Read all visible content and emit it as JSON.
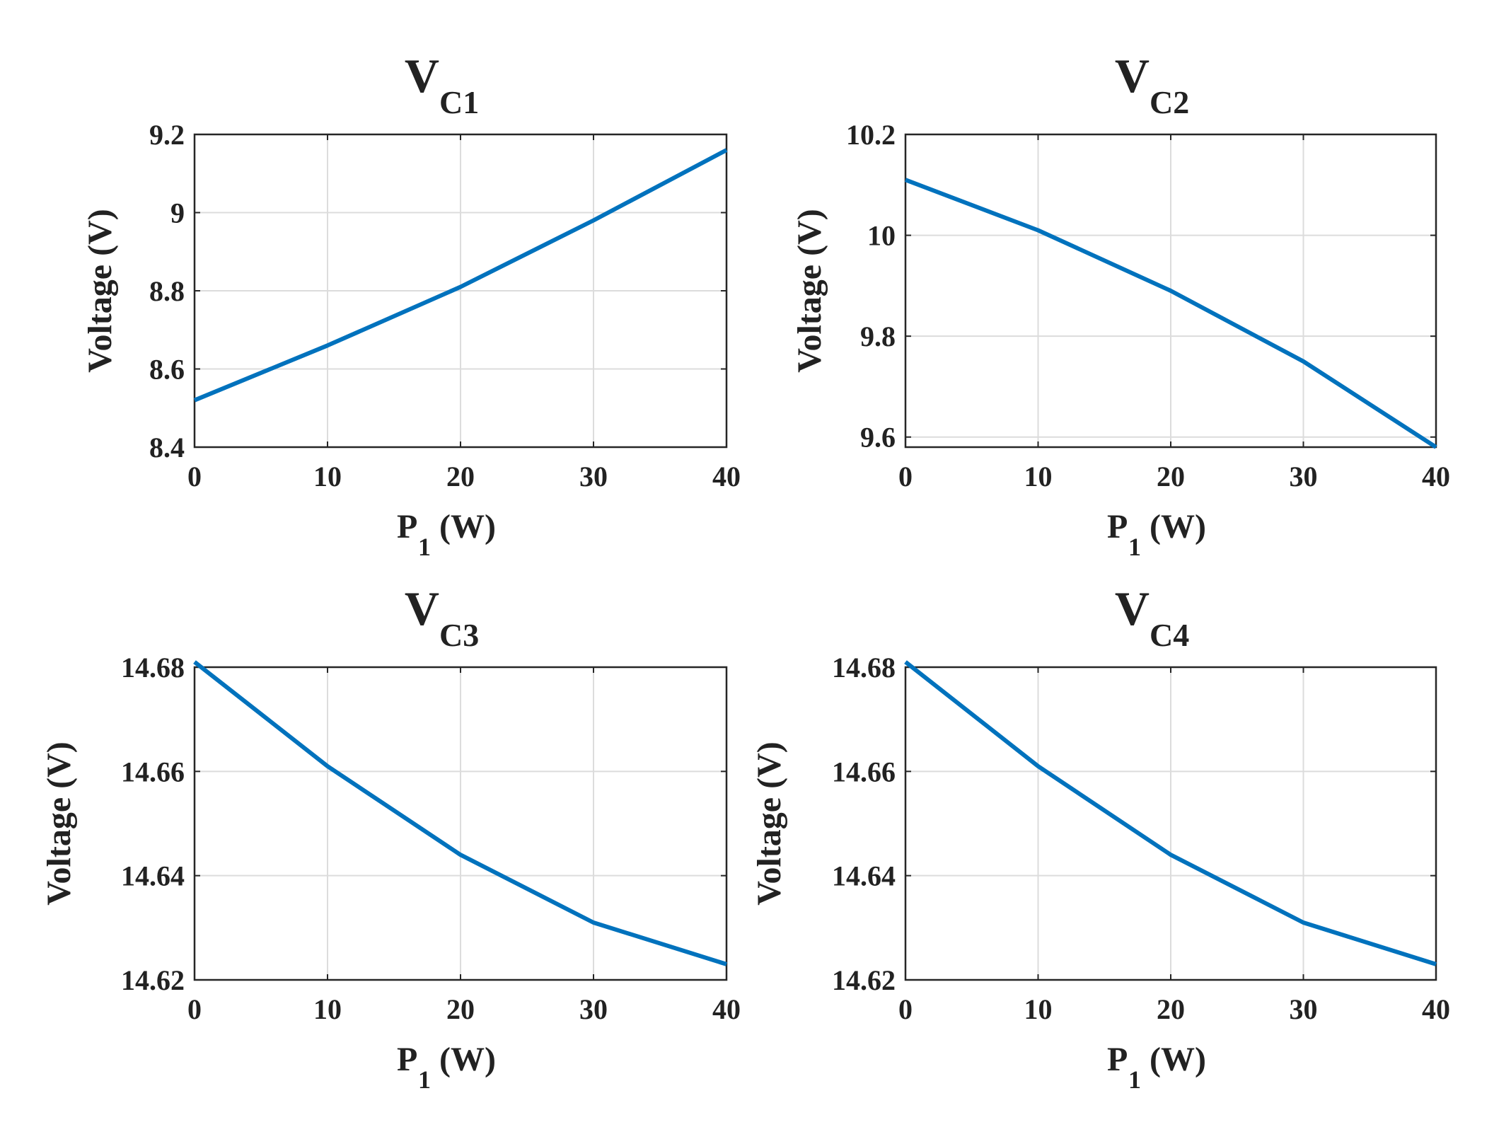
{
  "chart_data": [
    {
      "type": "line",
      "title_main": "V",
      "title_sub": "C1",
      "xlabel_main": "P",
      "xlabel_sub": "1",
      "xlabel_unit": "(W)",
      "ylabel": "Voltage (V)",
      "xlim": [
        0,
        40
      ],
      "ylim": [
        8.4,
        9.2
      ],
      "xticks": [
        "0",
        "10",
        "20",
        "30",
        "40"
      ],
      "yticks": [
        "8.4",
        "8.6",
        "8.8",
        "9",
        "9.2"
      ],
      "grid": true,
      "color": "#0072BD",
      "x": [
        0,
        10,
        20,
        30,
        40
      ],
      "y": [
        8.52,
        8.66,
        8.81,
        8.98,
        9.16
      ]
    },
    {
      "type": "line",
      "title_main": "V",
      "title_sub": "C2",
      "xlabel_main": "P",
      "xlabel_sub": "1",
      "xlabel_unit": "(W)",
      "ylabel": "Voltage (V)",
      "xlim": [
        0,
        40
      ],
      "ylim": [
        9.58,
        10.2
      ],
      "xticks": [
        "0",
        "10",
        "20",
        "30",
        "40"
      ],
      "yticks": [
        "9.6",
        "9.8",
        "10",
        "10.2"
      ],
      "grid": true,
      "color": "#0072BD",
      "x": [
        0,
        10,
        20,
        30,
        40
      ],
      "y": [
        10.11,
        10.01,
        9.89,
        9.75,
        9.58
      ]
    },
    {
      "type": "line",
      "title_main": "V",
      "title_sub": "C3",
      "xlabel_main": "P",
      "xlabel_sub": "1",
      "xlabel_unit": "(W)",
      "ylabel": "Voltage (V)",
      "xlim": [
        0,
        40
      ],
      "ylim": [
        14.62,
        14.68
      ],
      "xticks": [
        "0",
        "10",
        "20",
        "30",
        "40"
      ],
      "yticks": [
        "14.62",
        "14.64",
        "14.66",
        "14.68"
      ],
      "grid": true,
      "color": "#0072BD",
      "x": [
        0,
        10,
        20,
        30,
        40
      ],
      "y": [
        14.681,
        14.661,
        14.644,
        14.631,
        14.623
      ]
    },
    {
      "type": "line",
      "title_main": "V",
      "title_sub": "C4",
      "xlabel_main": "P",
      "xlabel_sub": "1",
      "xlabel_unit": "(W)",
      "ylabel": "Voltage (V)",
      "xlim": [
        0,
        40
      ],
      "ylim": [
        14.62,
        14.68
      ],
      "xticks": [
        "0",
        "10",
        "20",
        "30",
        "40"
      ],
      "yticks": [
        "14.62",
        "14.64",
        "14.66",
        "14.68"
      ],
      "grid": true,
      "color": "#0072BD",
      "x": [
        0,
        10,
        20,
        30,
        40
      ],
      "y": [
        14.681,
        14.661,
        14.644,
        14.631,
        14.623
      ]
    }
  ]
}
